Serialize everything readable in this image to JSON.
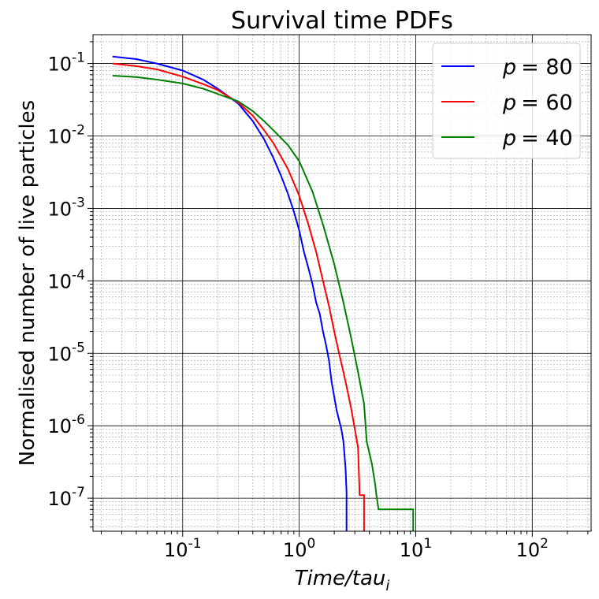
{
  "chart_data": {
    "type": "line",
    "title": "Survival time PDFs",
    "xlabel": "Time/tau_i",
    "xlabel_main": "Time/tau",
    "xlabel_sub": "i",
    "ylabel": "Normalised number of live particles",
    "xscale": "log",
    "yscale": "log",
    "xlim": [
      0.017,
      320
    ],
    "ylim": [
      3.5e-08,
      0.25
    ],
    "grid": "major and minor",
    "legend_position": "top-right",
    "x_ticks": [
      {
        "value": 0.1,
        "exp": "-1"
      },
      {
        "value": 1,
        "exp": "0"
      },
      {
        "value": 10,
        "exp": "1"
      },
      {
        "value": 100,
        "exp": "2"
      }
    ],
    "y_ticks": [
      {
        "value": 0.1,
        "exp": "-1"
      },
      {
        "value": 0.01,
        "exp": "-2"
      },
      {
        "value": 0.001,
        "exp": "-3"
      },
      {
        "value": 0.0001,
        "exp": "-4"
      },
      {
        "value": 1e-05,
        "exp": "-5"
      },
      {
        "value": 1e-06,
        "exp": "-6"
      },
      {
        "value": 1e-07,
        "exp": "-7"
      }
    ],
    "tick_base": "10",
    "series": [
      {
        "name": "p = 80",
        "legend_var": "p",
        "legend_value": "= 80",
        "color": "#0000ff",
        "x": [
          0.025,
          0.04,
          0.06,
          0.1,
          0.15,
          0.2,
          0.3,
          0.4,
          0.5,
          0.6,
          0.7,
          0.8,
          0.9,
          1.0,
          1.1,
          1.2,
          1.3,
          1.4,
          1.5,
          1.6,
          1.7,
          1.8,
          1.9,
          2.0,
          2.1,
          2.2,
          2.3,
          2.4,
          2.5,
          2.55,
          2.55
        ],
        "y": [
          0.125,
          0.115,
          0.1,
          0.08,
          0.06,
          0.045,
          0.028,
          0.016,
          0.009,
          0.005,
          0.0028,
          0.0016,
          0.0009,
          0.0005,
          0.00025,
          0.00015,
          9e-05,
          5e-05,
          3.5e-05,
          2e-05,
          1.3e-05,
          8e-06,
          4e-06,
          2.5e-06,
          1.6e-06,
          1.2e-06,
          9e-07,
          6e-07,
          2.5e-07,
          1.2e-07,
          3e-08
        ]
      },
      {
        "name": "p = 60",
        "legend_var": "p",
        "legend_value": "= 60",
        "color": "#ff0000",
        "x": [
          0.025,
          0.04,
          0.06,
          0.1,
          0.15,
          0.2,
          0.3,
          0.4,
          0.5,
          0.6,
          0.8,
          1.0,
          1.2,
          1.4,
          1.6,
          1.8,
          2.0,
          2.2,
          2.4,
          2.6,
          2.8,
          3.0,
          3.2,
          3.3,
          3.6,
          3.6
        ],
        "y": [
          0.1,
          0.092,
          0.083,
          0.066,
          0.052,
          0.043,
          0.029,
          0.019,
          0.012,
          0.008,
          0.0035,
          0.0015,
          0.0006,
          0.00025,
          0.0001,
          4.5e-05,
          2e-05,
          1e-05,
          5.5e-06,
          3e-06,
          1.7e-06,
          9e-07,
          5e-07,
          1.1e-07,
          1.1e-07,
          3e-08
        ]
      },
      {
        "name": "p = 40",
        "legend_var": "p",
        "legend_value": "= 40",
        "color": "#008000",
        "x": [
          0.025,
          0.04,
          0.06,
          0.1,
          0.15,
          0.2,
          0.3,
          0.4,
          0.5,
          0.6,
          0.8,
          1.0,
          1.3,
          1.6,
          2.0,
          2.4,
          2.8,
          3.2,
          3.6,
          3.8,
          4.2,
          4.5,
          4.6,
          4.8,
          9.5,
          9.5
        ],
        "y": [
          0.068,
          0.065,
          0.06,
          0.053,
          0.045,
          0.038,
          0.03,
          0.022,
          0.016,
          0.012,
          0.0075,
          0.0045,
          0.0017,
          0.0006,
          0.00017,
          5e-05,
          1.6e-05,
          5.5e-06,
          2e-06,
          6e-07,
          3e-07,
          1.5e-07,
          1.1e-07,
          7e-08,
          7e-08,
          3e-08
        ]
      }
    ]
  }
}
